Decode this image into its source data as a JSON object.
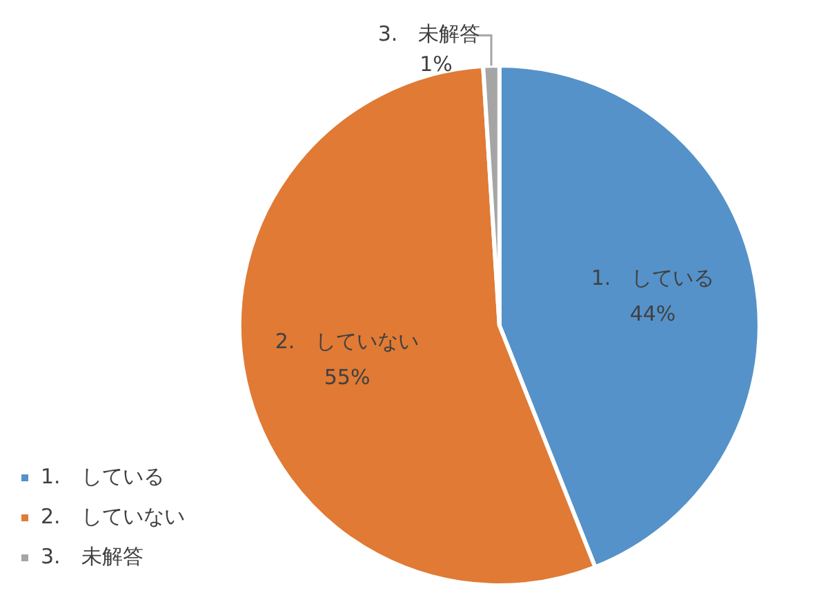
{
  "chart_data": {
    "type": "pie",
    "categories": [
      "1.　している",
      "2.　していない",
      "3.　未解答"
    ],
    "values": [
      44,
      55,
      1
    ],
    "value_labels": [
      "44%",
      "55%",
      "1%"
    ],
    "colors": [
      "#5592c9",
      "#e07a35",
      "#a5a5a5"
    ],
    "legend": "bottom left"
  }
}
